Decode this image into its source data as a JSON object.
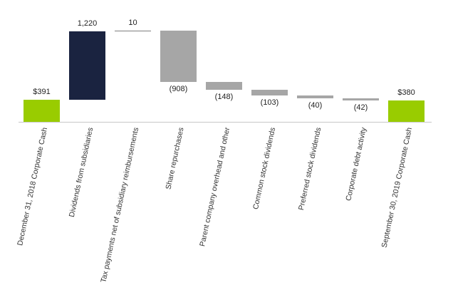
{
  "chart_data": {
    "type": "waterfall",
    "title": "",
    "xlabel": "",
    "ylabel": "",
    "grid": false,
    "legend": null,
    "categories": [
      "December 31, 2018 Corporate Cash",
      "Dividends from subsidiaries",
      "Tax payments net of subsidiary reimbursements",
      "Share repurchases",
      "Parent company overhead and other",
      "Common stock dividends",
      "Preferred stock dividends",
      "Corporate debt activity",
      "September 30, 2019 Corporate Cash"
    ],
    "values": [
      391,
      1220,
      10,
      -908,
      -148,
      -103,
      -40,
      -42,
      380
    ],
    "labels": [
      "$391",
      "1,220",
      "10",
      "(908)",
      "(148)",
      "(103)",
      "(40)",
      "(42)",
      "$380"
    ],
    "kinds": [
      "total",
      "increase",
      "increase",
      "decrease",
      "decrease",
      "decrease",
      "decrease",
      "decrease",
      "total"
    ],
    "colors": {
      "total": "#99cc00",
      "increase": "#1a2340",
      "decrease": "#a6a6a6",
      "small_increase_line": "#7f7f7f",
      "axis": "#c8c8c8"
    }
  }
}
